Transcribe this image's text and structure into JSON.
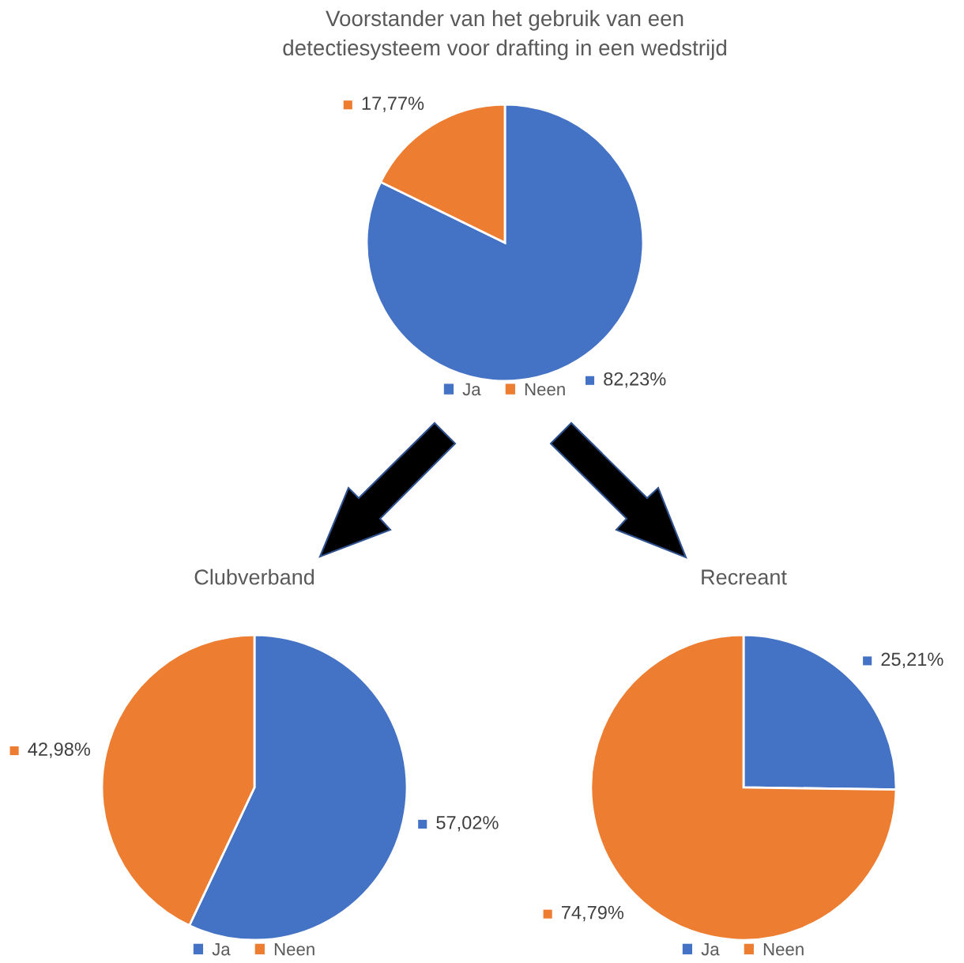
{
  "chart_data": [
    {
      "type": "pie",
      "title": "Voorstander van het gebruik van een\ndetectiesysteem voor drafting in een wedstrijd",
      "categories": [
        "Ja",
        "Neen"
      ],
      "values": [
        82.23,
        17.77
      ],
      "colors": [
        "#4472c4",
        "#ed7d31"
      ],
      "value_labels": [
        "82,23%",
        "17,77%"
      ],
      "legend": "bottom"
    },
    {
      "type": "pie",
      "title": "Clubverband",
      "categories": [
        "Ja",
        "Neen"
      ],
      "values": [
        57.02,
        42.98
      ],
      "colors": [
        "#4472c4",
        "#ed7d31"
      ],
      "value_labels": [
        "57,02%",
        "42,98%"
      ],
      "legend": "bottom"
    },
    {
      "type": "pie",
      "title": "Recreant",
      "categories": [
        "Ja",
        "Neen"
      ],
      "values": [
        25.21,
        74.79
      ],
      "colors": [
        "#4472c4",
        "#ed7d31"
      ],
      "value_labels": [
        "25,21%",
        "74,79%"
      ],
      "legend": "bottom"
    }
  ]
}
